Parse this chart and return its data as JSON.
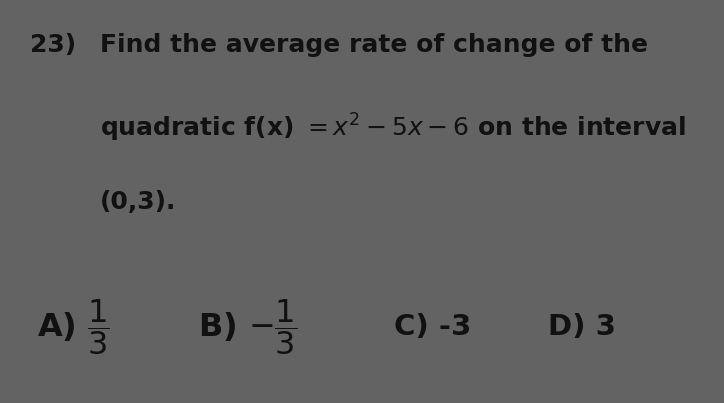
{
  "background_outer": "#636363",
  "background_inner": "#cddde6",
  "q_num": "23)",
  "line1": "Find the average rate of change of the",
  "line2a": "quadratic f(x) = ",
  "line2b": " – 5x – 6 on the interval",
  "line3": "(0,3).",
  "answer_C": "C) -3",
  "answer_D": "D) 3",
  "text_color": "#111111",
  "fq": 18,
  "fa": 20
}
